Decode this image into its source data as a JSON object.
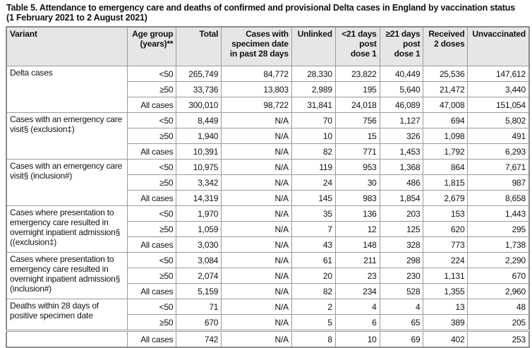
{
  "title_line1": "Table 5. Attendance to emergency care and deaths of confirmed and provisional Delta cases in England by vaccination status",
  "title_line2": "(1 February 2021 to 2 August 2021)",
  "headers": [
    "Variant",
    "Age group (years)**",
    "Total",
    "Cases with specimen date in past 28 days",
    "Unlinked",
    "<21 days post dose 1",
    "≥21 days post dose 1",
    "Received 2 doses",
    "Unvaccinated"
  ],
  "groups": [
    {
      "variant": "Delta cases",
      "rows": [
        [
          "<50",
          "265,749",
          "84,772",
          "28,330",
          "23,822",
          "40,449",
          "25,536",
          "147,612"
        ],
        [
          "≥50",
          "33,736",
          "13,803",
          "2,989",
          "195",
          "5,640",
          "21,472",
          "3,440"
        ],
        [
          "All cases",
          "300,010",
          "98,722",
          "31,841",
          "24,018",
          "46,089",
          "47,008",
          "151,054"
        ]
      ]
    },
    {
      "variant": "Cases with an emergency care visit§ (exclusion‡)",
      "rows": [
        [
          "<50",
          "8,449",
          "N/A",
          "70",
          "756",
          "1,127",
          "694",
          "5,802"
        ],
        [
          "≥50",
          "1,940",
          "N/A",
          "10",
          "15",
          "326",
          "1,098",
          "491"
        ],
        [
          "All cases",
          "10,391",
          "N/A",
          "82",
          "771",
          "1,453",
          "1,792",
          "6,293"
        ]
      ]
    },
    {
      "variant": "Cases with an emergency care visit§ (inclusion#)",
      "rows": [
        [
          "<50",
          "10,975",
          "N/A",
          "119",
          "953",
          "1,368",
          "864",
          "7,671"
        ],
        [
          "≥50",
          "3,342",
          "N/A",
          "24",
          "30",
          "486",
          "1,815",
          "987"
        ],
        [
          "All cases",
          "14,319",
          "N/A",
          "145",
          "983",
          "1,854",
          "2,679",
          "8,658"
        ]
      ]
    },
    {
      "variant": "Cases where presentation to emergency care resulted in overnight inpatient admission§ ((exclusion‡)",
      "rows": [
        [
          "<50",
          "1,970",
          "N/A",
          "35",
          "136",
          "203",
          "153",
          "1,443"
        ],
        [
          "≥50",
          "1,059",
          "N/A",
          "7",
          "12",
          "125",
          "620",
          "295"
        ],
        [
          "All cases",
          "3,030",
          "N/A",
          "43",
          "148",
          "328",
          "773",
          "1,738"
        ]
      ]
    },
    {
      "variant": "Cases where presentation to emergency care resulted in overnight inpatient admission§ (inclusion#)",
      "rows": [
        [
          "<50",
          "3,084",
          "N/A",
          "61",
          "211",
          "298",
          "224",
          "2,290"
        ],
        [
          "≥50",
          "2,074",
          "N/A",
          "20",
          "23",
          "230",
          "1,131",
          "670"
        ],
        [
          "All cases",
          "5,159",
          "N/A",
          "82",
          "234",
          "528",
          "1,355",
          "2,960"
        ]
      ]
    },
    {
      "variant": "Deaths within 28 days of positive specimen date",
      "rows": [
        [
          "<50",
          "71",
          "N/A",
          "2",
          "4",
          "4",
          "13",
          "48"
        ],
        [
          "≥50",
          "670",
          "N/A",
          "5",
          "6",
          "65",
          "389",
          "205"
        ]
      ]
    }
  ],
  "final_row": [
    "All cases",
    "742",
    "N/A",
    "8",
    "10",
    "69",
    "402",
    "253"
  ]
}
